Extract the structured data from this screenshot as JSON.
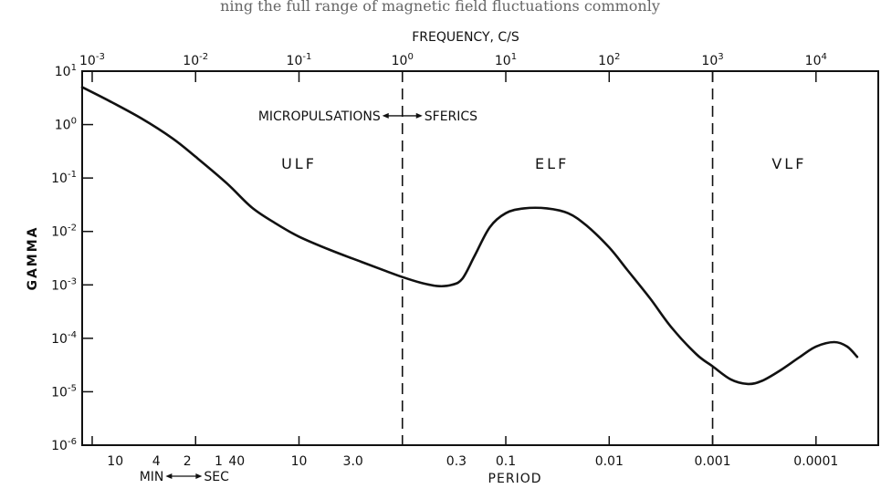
{
  "header_fragment": "ning the full range of magnetic field fluctuations commonly",
  "chart_data": {
    "type": "line",
    "title": "",
    "top_axis_label": "FREQUENCY, C/S",
    "ylabel": "GAMMA",
    "xlabel": "PERIOD",
    "x_scale": "log",
    "xlim": [
      0.0008,
      40000
    ],
    "y_scale": "log",
    "ylim": [
      1e-06,
      10
    ],
    "top_ticks": [
      {
        "value": 0.001,
        "label": "10-3",
        "base": "10",
        "exp": "-3"
      },
      {
        "value": 0.01,
        "label": "10-2",
        "base": "10",
        "exp": "-2"
      },
      {
        "value": 0.1,
        "label": "10-1",
        "base": "10",
        "exp": "-1"
      },
      {
        "value": 1,
        "label": "100",
        "base": "10",
        "exp": "0"
      },
      {
        "value": 10,
        "label": "101",
        "base": "10",
        "exp": "1"
      },
      {
        "value": 100,
        "label": "102",
        "base": "10",
        "exp": "2"
      },
      {
        "value": 1000,
        "label": "103",
        "base": "10",
        "exp": "3"
      },
      {
        "value": 10000,
        "label": "104",
        "base": "10",
        "exp": "4"
      }
    ],
    "y_ticks": [
      {
        "value": 10,
        "label": "101",
        "base": "10",
        "exp": "1"
      },
      {
        "value": 1,
        "label": "100",
        "base": "10",
        "exp": "0"
      },
      {
        "value": 0.1,
        "label": "10-1",
        "base": "10",
        "exp": "-1"
      },
      {
        "value": 0.01,
        "label": "10-2",
        "base": "10",
        "exp": "-2"
      },
      {
        "value": 0.001,
        "label": "10-3",
        "base": "10",
        "exp": "-3"
      },
      {
        "value": 0.0001,
        "label": "10-4",
        "base": "10",
        "exp": "-4"
      },
      {
        "value": 1e-05,
        "label": "10-5",
        "base": "10",
        "exp": "-5"
      },
      {
        "value": 1e-06,
        "label": "10-6",
        "base": "10",
        "exp": "-6"
      }
    ],
    "bottom_ticks": [
      {
        "frequency": 0.00167,
        "label": "10"
      },
      {
        "frequency": 0.00417,
        "label": "4"
      },
      {
        "frequency": 0.00833,
        "label": "2"
      },
      {
        "frequency": 0.0167,
        "label": "1"
      },
      {
        "frequency": 0.025,
        "label": "40"
      },
      {
        "frequency": 0.1,
        "label": "10"
      },
      {
        "frequency": 0.333,
        "label": "3.0"
      },
      {
        "frequency": 3.33,
        "label": "0.3"
      },
      {
        "frequency": 10,
        "label": "0.1"
      },
      {
        "frequency": 100,
        "label": "0.01"
      },
      {
        "frequency": 1000,
        "label": "0.001"
      },
      {
        "frequency": 10000,
        "label": "0.0001"
      }
    ],
    "bottom_unit_left": "MIN",
    "bottom_unit_right": "SEC",
    "boundaries": [
      1,
      1000
    ],
    "regions": [
      {
        "label": "ULF",
        "x": 0.1,
        "y": 0.15
      },
      {
        "label": "ELF",
        "x": 28,
        "y": 0.15
      },
      {
        "label": "VLF",
        "x": 5500,
        "y": 0.15
      }
    ],
    "annotation": {
      "left": "MICROPULSATIONS",
      "right": "SFERICS",
      "at_frequency": 1,
      "y": 1.2
    },
    "series": [
      {
        "x": [
          0.0008,
          0.0015,
          0.003,
          0.006,
          0.01,
          0.02,
          0.035,
          0.06,
          0.1,
          0.2,
          0.4,
          0.7,
          1,
          1.5,
          2.2,
          3,
          3.8,
          5,
          7,
          10,
          15,
          25,
          40,
          60,
          100,
          150,
          250,
          400,
          700,
          1000,
          1500,
          2200,
          3000,
          4500,
          7000,
          10000,
          15000,
          20000,
          25000
        ],
        "y": [
          5,
          2.7,
          1.3,
          0.55,
          0.25,
          0.08,
          0.028,
          0.014,
          0.008,
          0.0045,
          0.0027,
          0.0018,
          0.0014,
          0.0011,
          0.00095,
          0.001,
          0.0013,
          0.0035,
          0.012,
          0.022,
          0.027,
          0.027,
          0.022,
          0.013,
          0.005,
          0.0019,
          0.00055,
          0.00016,
          5e-05,
          3e-05,
          1.7e-05,
          1.4e-05,
          1.6e-05,
          2.5e-05,
          4.5e-05,
          7e-05,
          8.5e-05,
          7e-05,
          4.5e-05
        ]
      }
    ]
  }
}
